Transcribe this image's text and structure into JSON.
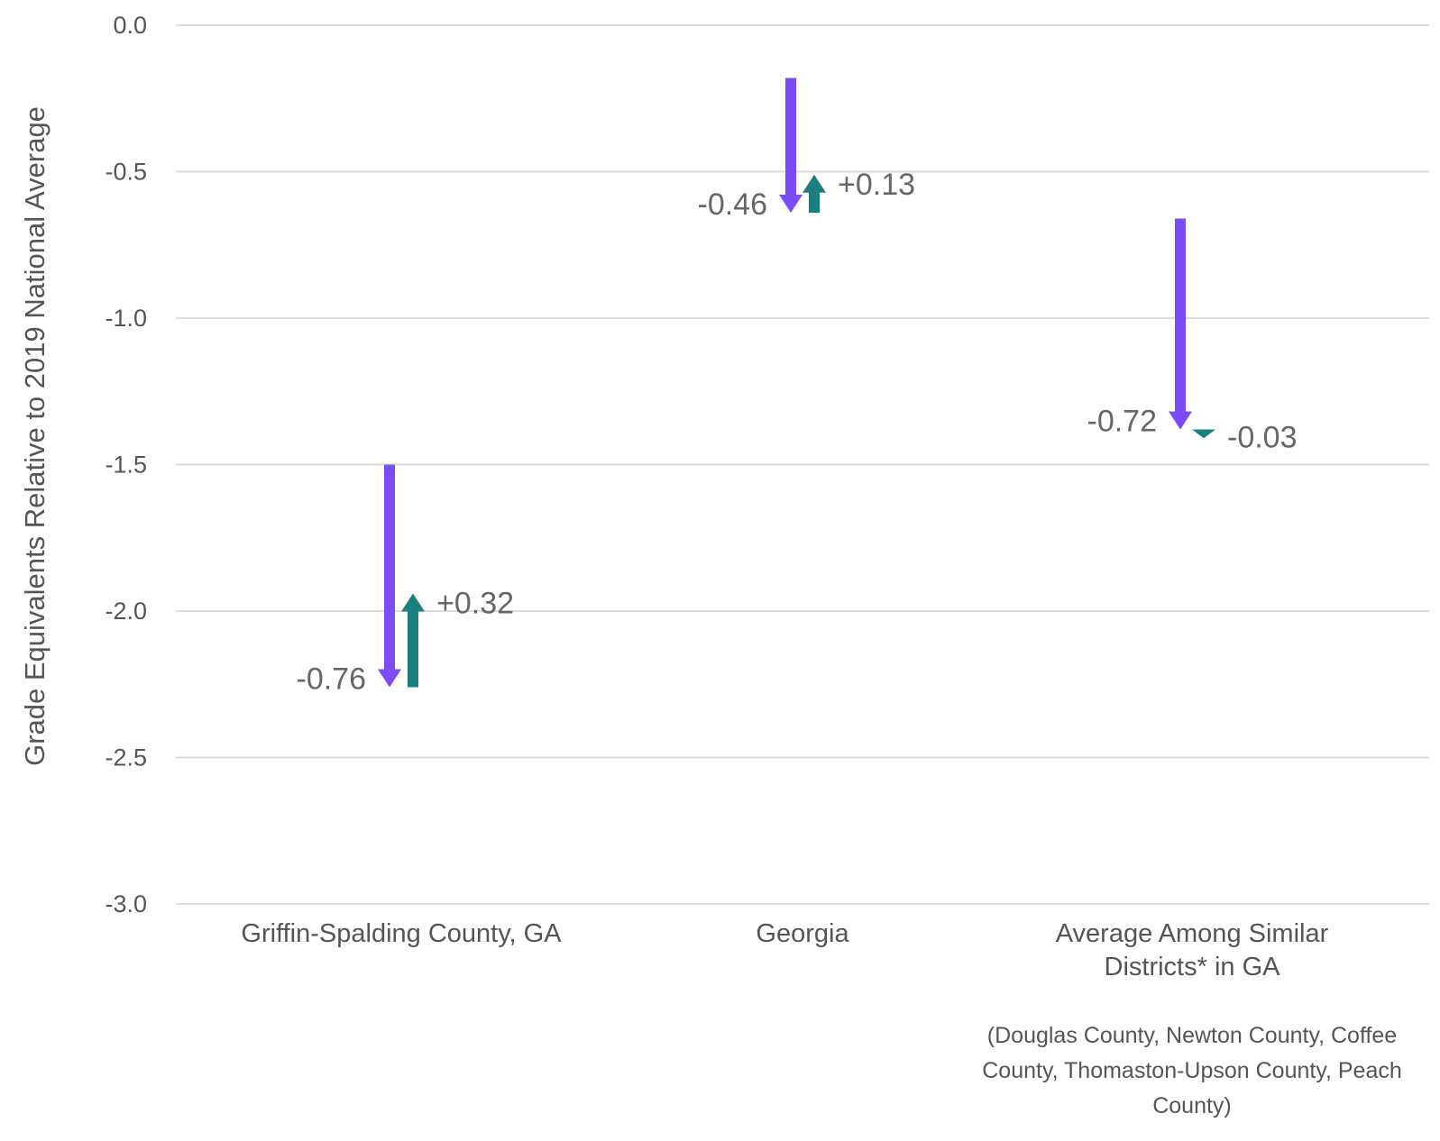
{
  "chart_data": {
    "type": "arrow",
    "ylabel": "Grade Equivalents Relative to 2019 National Average",
    "xlabel": "",
    "title": "",
    "ylim": [
      -3.0,
      0.0
    ],
    "yticks": [
      "0.0",
      "-0.5",
      "-1.0",
      "-1.5",
      "-2.0",
      "-2.5",
      "-3.0"
    ],
    "grid": true,
    "categories": [
      "Griffin-Spalding County, GA",
      "Georgia",
      "Average Among Similar Districts* in GA"
    ],
    "category_lines": [
      [
        "Griffin-Spalding County, GA"
      ],
      [
        "Georgia"
      ],
      [
        "Average Among Similar",
        "Districts* in GA"
      ]
    ],
    "footnote_lines": [
      "(Douglas County, Newton County, Coffee",
      "County, Thomaston-Upson County, Peach",
      "County)"
    ],
    "series": [
      {
        "color": "#7b4cf5",
        "starts": [
          -1.5,
          -0.18,
          -0.66
        ],
        "ends": [
          -2.26,
          -0.64,
          -1.38
        ],
        "labels": [
          "-0.76",
          "-0.46",
          "-0.72"
        ]
      },
      {
        "color": "#1a7f7f",
        "starts": [
          -2.26,
          -0.64,
          -1.38
        ],
        "ends": [
          -1.94,
          -0.51,
          -1.41
        ],
        "labels": [
          "+0.32",
          "+0.13",
          "-0.03"
        ]
      }
    ]
  },
  "colors": {
    "grid": "#dcdcdc",
    "text": "#555555",
    "label": "#666666",
    "decline": "#7b4cf5",
    "change": "#1a7f7f"
  }
}
